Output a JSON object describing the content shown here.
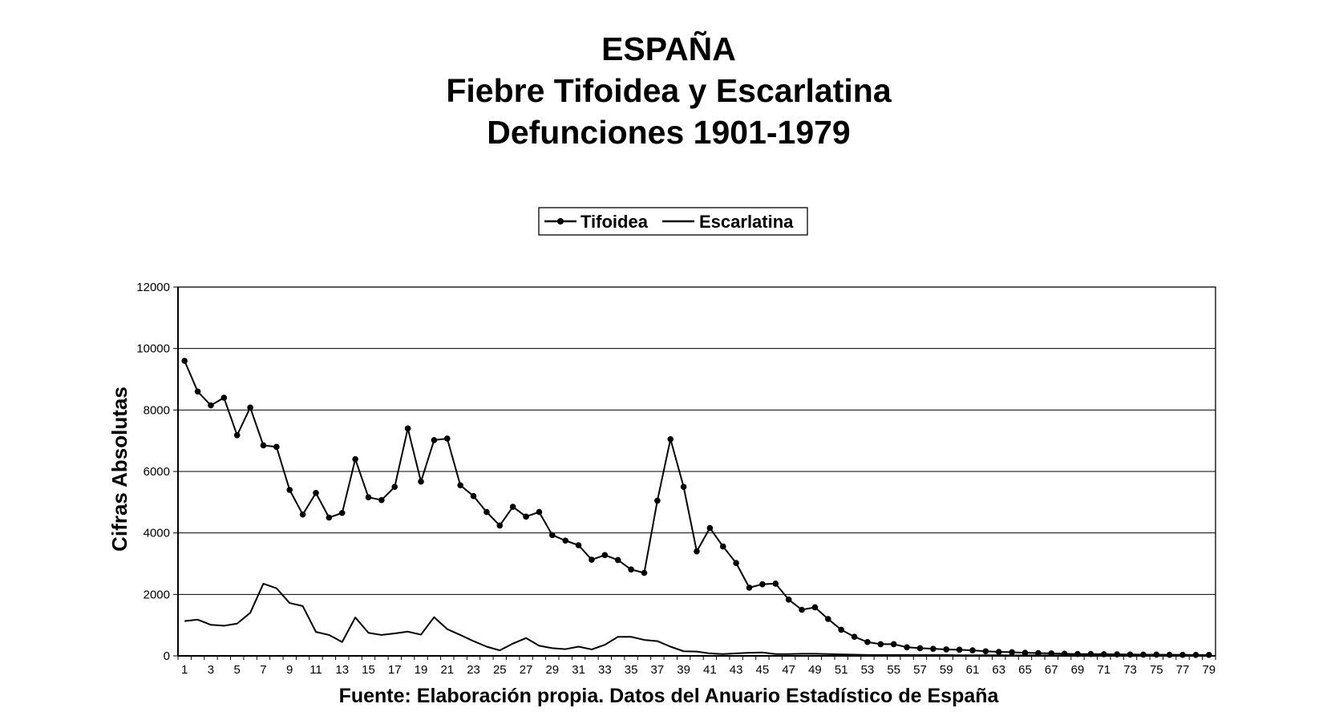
{
  "chart_data": {
    "type": "line",
    "title": [
      "ESPAÑA",
      "Fiebre Tifoidea y Escarlatina",
      "Defunciones 1901-1979"
    ],
    "ylabel": "Cifras Absolutas",
    "footer": "Fuente: Elaboración propia. Datos del Anuario Estadístico de España",
    "ylim": [
      0,
      12000
    ],
    "yticks": [
      "0",
      "2000",
      "4000",
      "6000",
      "8000",
      "10000",
      "12000"
    ],
    "x": [
      1,
      2,
      3,
      4,
      5,
      6,
      7,
      8,
      9,
      10,
      11,
      12,
      13,
      14,
      15,
      16,
      17,
      18,
      19,
      20,
      21,
      22,
      23,
      24,
      25,
      26,
      27,
      28,
      29,
      30,
      31,
      32,
      33,
      34,
      35,
      36,
      37,
      38,
      39,
      40,
      41,
      42,
      43,
      44,
      45,
      46,
      47,
      48,
      49,
      50,
      51,
      52,
      53,
      54,
      55,
      56,
      57,
      58,
      59,
      60,
      61,
      62,
      63,
      64,
      65,
      66,
      67,
      68,
      69,
      70,
      71,
      72,
      73,
      74,
      75,
      76,
      77,
      78,
      79
    ],
    "xticks": [
      "1",
      "3",
      "5",
      "7",
      "9",
      "11",
      "13",
      "15",
      "17",
      "19",
      "21",
      "23",
      "25",
      "27",
      "29",
      "31",
      "33",
      "35",
      "37",
      "39",
      "41",
      "43",
      "45",
      "47",
      "49",
      "51",
      "53",
      "55",
      "57",
      "59",
      "61",
      "63",
      "65",
      "67",
      "69",
      "71",
      "73",
      "75",
      "77",
      "79"
    ],
    "grid": true,
    "legend": "top-center",
    "series": [
      {
        "name": "Tifoidea",
        "marker": "circle",
        "values": [
          9600,
          8600,
          8150,
          8400,
          7180,
          8080,
          6850,
          6800,
          5400,
          4600,
          5300,
          4500,
          4650,
          6400,
          5160,
          5070,
          5500,
          7400,
          5670,
          7020,
          7070,
          5550,
          5200,
          4680,
          4240,
          4850,
          4530,
          4680,
          3930,
          3750,
          3600,
          3130,
          3280,
          3120,
          2810,
          2700,
          5050,
          7050,
          5500,
          3400,
          4160,
          3560,
          3020,
          2220,
          2330,
          2350,
          1830,
          1500,
          1580,
          1200,
          850,
          620,
          450,
          380,
          380,
          280,
          250,
          230,
          210,
          200,
          180,
          150,
          130,
          120,
          100,
          90,
          80,
          70,
          60,
          60,
          55,
          50,
          45,
          40,
          40,
          35,
          35,
          30,
          30
        ]
      },
      {
        "name": "Escarlatina",
        "marker": "none",
        "values": [
          1130,
          1180,
          1010,
          980,
          1050,
          1400,
          2350,
          2200,
          1720,
          1620,
          780,
          680,
          450,
          1250,
          750,
          680,
          730,
          790,
          690,
          1260,
          870,
          680,
          480,
          300,
          180,
          400,
          580,
          330,
          250,
          220,
          300,
          210,
          360,
          620,
          620,
          520,
          480,
          300,
          150,
          140,
          80,
          60,
          80,
          100,
          110,
          60,
          60,
          70,
          70,
          60,
          50,
          40,
          30,
          30,
          30,
          30,
          25,
          25,
          25,
          20,
          20,
          20,
          20,
          15,
          15,
          15,
          15,
          15,
          10,
          10,
          10,
          10,
          10,
          10,
          10,
          10,
          10,
          10,
          10
        ]
      }
    ]
  }
}
